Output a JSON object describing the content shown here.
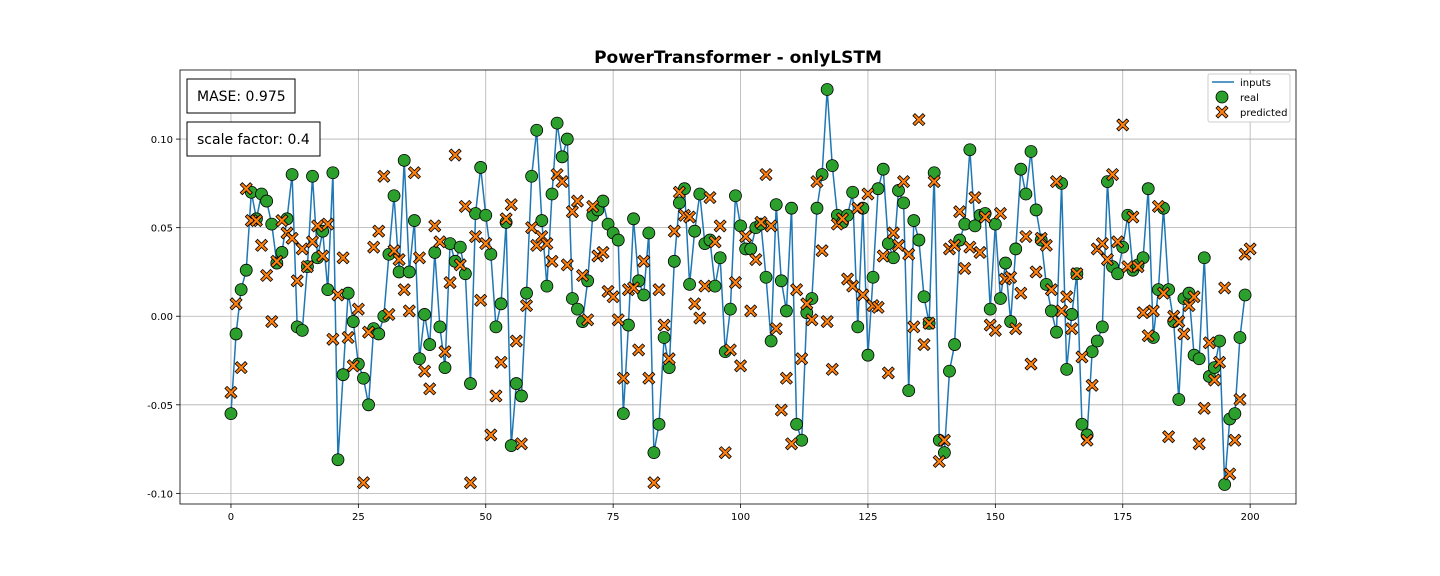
{
  "chart_data": {
    "type": "line+scatter",
    "title": "PowerTransformer - onlyLSTM",
    "xlabel": "",
    "ylabel": "",
    "xlim": [
      -10,
      209
    ],
    "ylim": [
      -0.106,
      0.139
    ],
    "xticks": [
      0,
      25,
      50,
      75,
      100,
      125,
      150,
      175,
      200
    ],
    "xtick_labels": [
      "0",
      "25",
      "50",
      "75",
      "100",
      "125",
      "150",
      "175",
      "200"
    ],
    "yticks": [
      -0.1,
      -0.05,
      0.0,
      0.05,
      0.1
    ],
    "ytick_labels": [
      "-0.10",
      "-0.05",
      "0.00",
      "0.05",
      "0.10"
    ],
    "grid": true,
    "legend_position": "top-right",
    "annotations": [
      "MASE: 0.975",
      "scale factor: 0.4"
    ],
    "colors": {
      "line": "#1f77b4",
      "real": "#2ca02c",
      "predicted": "#ff7f0e",
      "edge": "#000000"
    },
    "series": [
      {
        "name": "inputs",
        "kind": "line",
        "values": [
          -0.055,
          -0.01,
          0.015,
          0.026,
          0.07,
          0.055,
          0.069,
          0.065,
          0.052,
          0.03,
          0.036,
          0.055,
          0.08,
          -0.006,
          -0.008,
          0.028,
          0.079,
          0.033,
          0.048,
          0.015,
          0.081,
          -0.081,
          -0.033,
          0.013,
          -0.003,
          -0.027,
          -0.035,
          -0.05,
          -0.007,
          -0.01,
          0.0,
          0.035,
          0.068,
          0.025,
          0.088,
          0.025,
          0.054,
          -0.024,
          0.001,
          -0.016,
          0.036,
          -0.006,
          -0.029,
          0.041,
          0.031,
          0.039,
          0.024,
          -0.038,
          0.058,
          0.084,
          0.057,
          0.035,
          -0.006,
          0.007,
          0.053,
          -0.073,
          -0.038,
          -0.045,
          0.013,
          0.079,
          0.105,
          0.054,
          0.017,
          0.069,
          0.109,
          0.09,
          0.1,
          0.01,
          0.004,
          -0.003,
          0.02,
          0.057,
          0.06,
          0.065,
          0.052,
          0.047,
          0.043,
          -0.055,
          -0.005,
          0.055,
          0.02,
          0.012,
          0.047,
          -0.077,
          -0.061,
          -0.012,
          -0.029,
          0.031,
          0.064,
          0.072,
          0.018,
          0.048,
          0.069,
          0.041,
          0.043,
          0.017,
          0.033,
          -0.02,
          0.004,
          0.068,
          0.051,
          0.038,
          0.038,
          0.05,
          0.052,
          0.022,
          -0.014,
          0.063,
          0.02,
          0.003,
          0.061,
          -0.061,
          -0.07,
          0.002,
          0.01,
          0.061,
          0.08,
          0.128,
          0.085,
          0.057,
          0.053,
          0.057,
          0.07,
          -0.006,
          0.061,
          -0.022,
          0.022,
          0.072,
          0.083,
          0.041,
          0.033,
          0.071,
          0.064,
          -0.042,
          0.054,
          0.043,
          0.011,
          -0.004,
          0.081,
          -0.07,
          -0.077,
          -0.031,
          -0.016,
          0.043,
          0.052,
          0.094,
          0.051,
          0.057,
          0.058,
          0.004,
          0.052,
          0.01,
          0.03,
          -0.003,
          0.038,
          0.083,
          0.069,
          0.093,
          0.06,
          0.043,
          0.018,
          0.003,
          -0.009,
          0.075,
          -0.03,
          0.001,
          0.024,
          -0.061,
          -0.067,
          -0.02,
          -0.014,
          -0.006,
          0.076,
          0.028,
          0.024,
          0.039,
          0.057,
          0.026,
          0.029,
          0.033,
          0.072,
          -0.012,
          0.015,
          0.061,
          0.015,
          -0.003,
          -0.047,
          0.01,
          0.013,
          -0.022,
          -0.024,
          0.033,
          -0.034,
          -0.029,
          -0.014,
          -0.095,
          -0.058,
          -0.055,
          -0.012,
          0.012
        ]
      },
      {
        "name": "real",
        "kind": "scatter-circle",
        "values": [
          -0.055,
          -0.01,
          0.015,
          0.026,
          0.07,
          0.055,
          0.069,
          0.065,
          0.052,
          0.03,
          0.036,
          0.055,
          0.08,
          -0.006,
          -0.008,
          0.028,
          0.079,
          0.033,
          0.048,
          0.015,
          0.081,
          -0.081,
          -0.033,
          0.013,
          -0.003,
          -0.027,
          -0.035,
          -0.05,
          -0.007,
          -0.01,
          0.0,
          0.035,
          0.068,
          0.025,
          0.088,
          0.025,
          0.054,
          -0.024,
          0.001,
          -0.016,
          0.036,
          -0.006,
          -0.029,
          0.041,
          0.031,
          0.039,
          0.024,
          -0.038,
          0.058,
          0.084,
          0.057,
          0.035,
          -0.006,
          0.007,
          0.053,
          -0.073,
          -0.038,
          -0.045,
          0.013,
          0.079,
          0.105,
          0.054,
          0.017,
          0.069,
          0.109,
          0.09,
          0.1,
          0.01,
          0.004,
          -0.003,
          0.02,
          0.057,
          0.06,
          0.065,
          0.052,
          0.047,
          0.043,
          -0.055,
          -0.005,
          0.055,
          0.02,
          0.012,
          0.047,
          -0.077,
          -0.061,
          -0.012,
          -0.029,
          0.031,
          0.064,
          0.072,
          0.018,
          0.048,
          0.069,
          0.041,
          0.043,
          0.017,
          0.033,
          -0.02,
          0.004,
          0.068,
          0.051,
          0.038,
          0.038,
          0.05,
          0.052,
          0.022,
          -0.014,
          0.063,
          0.02,
          0.003,
          0.061,
          -0.061,
          -0.07,
          0.002,
          0.01,
          0.061,
          0.08,
          0.128,
          0.085,
          0.057,
          0.053,
          0.057,
          0.07,
          -0.006,
          0.061,
          -0.022,
          0.022,
          0.072,
          0.083,
          0.041,
          0.033,
          0.071,
          0.064,
          -0.042,
          0.054,
          0.043,
          0.011,
          -0.004,
          0.081,
          -0.07,
          -0.077,
          -0.031,
          -0.016,
          0.043,
          0.052,
          0.094,
          0.051,
          0.057,
          0.058,
          0.004,
          0.052,
          0.01,
          0.03,
          -0.003,
          0.038,
          0.083,
          0.069,
          0.093,
          0.06,
          0.043,
          0.018,
          0.003,
          -0.009,
          0.075,
          -0.03,
          0.001,
          0.024,
          -0.061,
          -0.067,
          -0.02,
          -0.014,
          -0.006,
          0.076,
          0.028,
          0.024,
          0.039,
          0.057,
          0.026,
          0.029,
          0.033,
          0.072,
          -0.012,
          0.015,
          0.061,
          0.015,
          -0.003,
          -0.047,
          0.01,
          0.013,
          -0.022,
          -0.024,
          0.033,
          -0.034,
          -0.029,
          -0.014,
          -0.095,
          -0.058,
          -0.055,
          -0.012,
          0.012
        ]
      },
      {
        "name": "predicted",
        "kind": "scatter-x",
        "values": [
          -0.043,
          0.007,
          -0.029,
          0.072,
          0.054,
          0.054,
          0.04,
          0.023,
          -0.003,
          0.031,
          0.054,
          0.047,
          0.044,
          0.02,
          0.038,
          0.028,
          0.042,
          0.051,
          0.034,
          0.052,
          -0.013,
          0.012,
          0.033,
          -0.012,
          -0.028,
          0.004,
          -0.094,
          -0.009,
          0.039,
          0.048,
          0.079,
          0.001,
          0.037,
          0.032,
          0.015,
          0.003,
          0.081,
          0.033,
          -0.031,
          -0.041,
          0.051,
          0.042,
          -0.02,
          0.019,
          0.091,
          0.029,
          0.062,
          -0.094,
          0.045,
          0.009,
          0.041,
          -0.067,
          -0.045,
          -0.026,
          0.055,
          0.063,
          -0.014,
          -0.072,
          0.006,
          0.05,
          0.04,
          0.045,
          0.041,
          0.031,
          0.08,
          0.076,
          0.029,
          0.059,
          0.065,
          0.023,
          -0.002,
          0.062,
          0.034,
          0.036,
          0.014,
          0.011,
          -0.002,
          -0.035,
          0.015,
          0.016,
          -0.019,
          0.031,
          -0.035,
          -0.094,
          0.015,
          -0.005,
          -0.024,
          0.048,
          0.07,
          0.057,
          0.056,
          0.007,
          -0.001,
          0.017,
          0.067,
          0.042,
          0.051,
          -0.077,
          -0.019,
          0.019,
          -0.028,
          0.045,
          0.003,
          0.032,
          0.053,
          0.08,
          0.051,
          -0.007,
          -0.053,
          -0.035,
          -0.072,
          0.015,
          -0.024,
          0.007,
          -0.002,
          0.076,
          0.037,
          -0.003,
          -0.03,
          0.052,
          0.055,
          0.021,
          0.017,
          0.061,
          0.012,
          0.069,
          0.006,
          0.005,
          0.034,
          -0.032,
          0.047,
          0.04,
          0.076,
          0.035,
          -0.006,
          0.111,
          -0.016,
          -0.004,
          0.076,
          -0.082,
          -0.07,
          0.038,
          0.04,
          0.059,
          0.027,
          0.039,
          0.067,
          0.036,
          0.056,
          -0.005,
          -0.008,
          0.058,
          0.021,
          0.022,
          -0.007,
          0.013,
          0.045,
          -0.027,
          0.025,
          0.044,
          0.04,
          0.015,
          0.076,
          0.003,
          0.011,
          -0.007,
          0.024,
          -0.023,
          -0.07,
          -0.039,
          0.038,
          0.041,
          0.032,
          0.08,
          0.042,
          0.108,
          0.028,
          0.056,
          0.028,
          0.002,
          -0.011,
          0.003,
          0.062,
          0.013,
          -0.068,
          0.0,
          -0.003,
          -0.01,
          0.006,
          0.011,
          -0.072,
          -0.052,
          -0.015,
          -0.036,
          -0.026,
          0.016,
          -0.089,
          -0.07,
          -0.047,
          0.035,
          0.038
        ]
      }
    ]
  }
}
